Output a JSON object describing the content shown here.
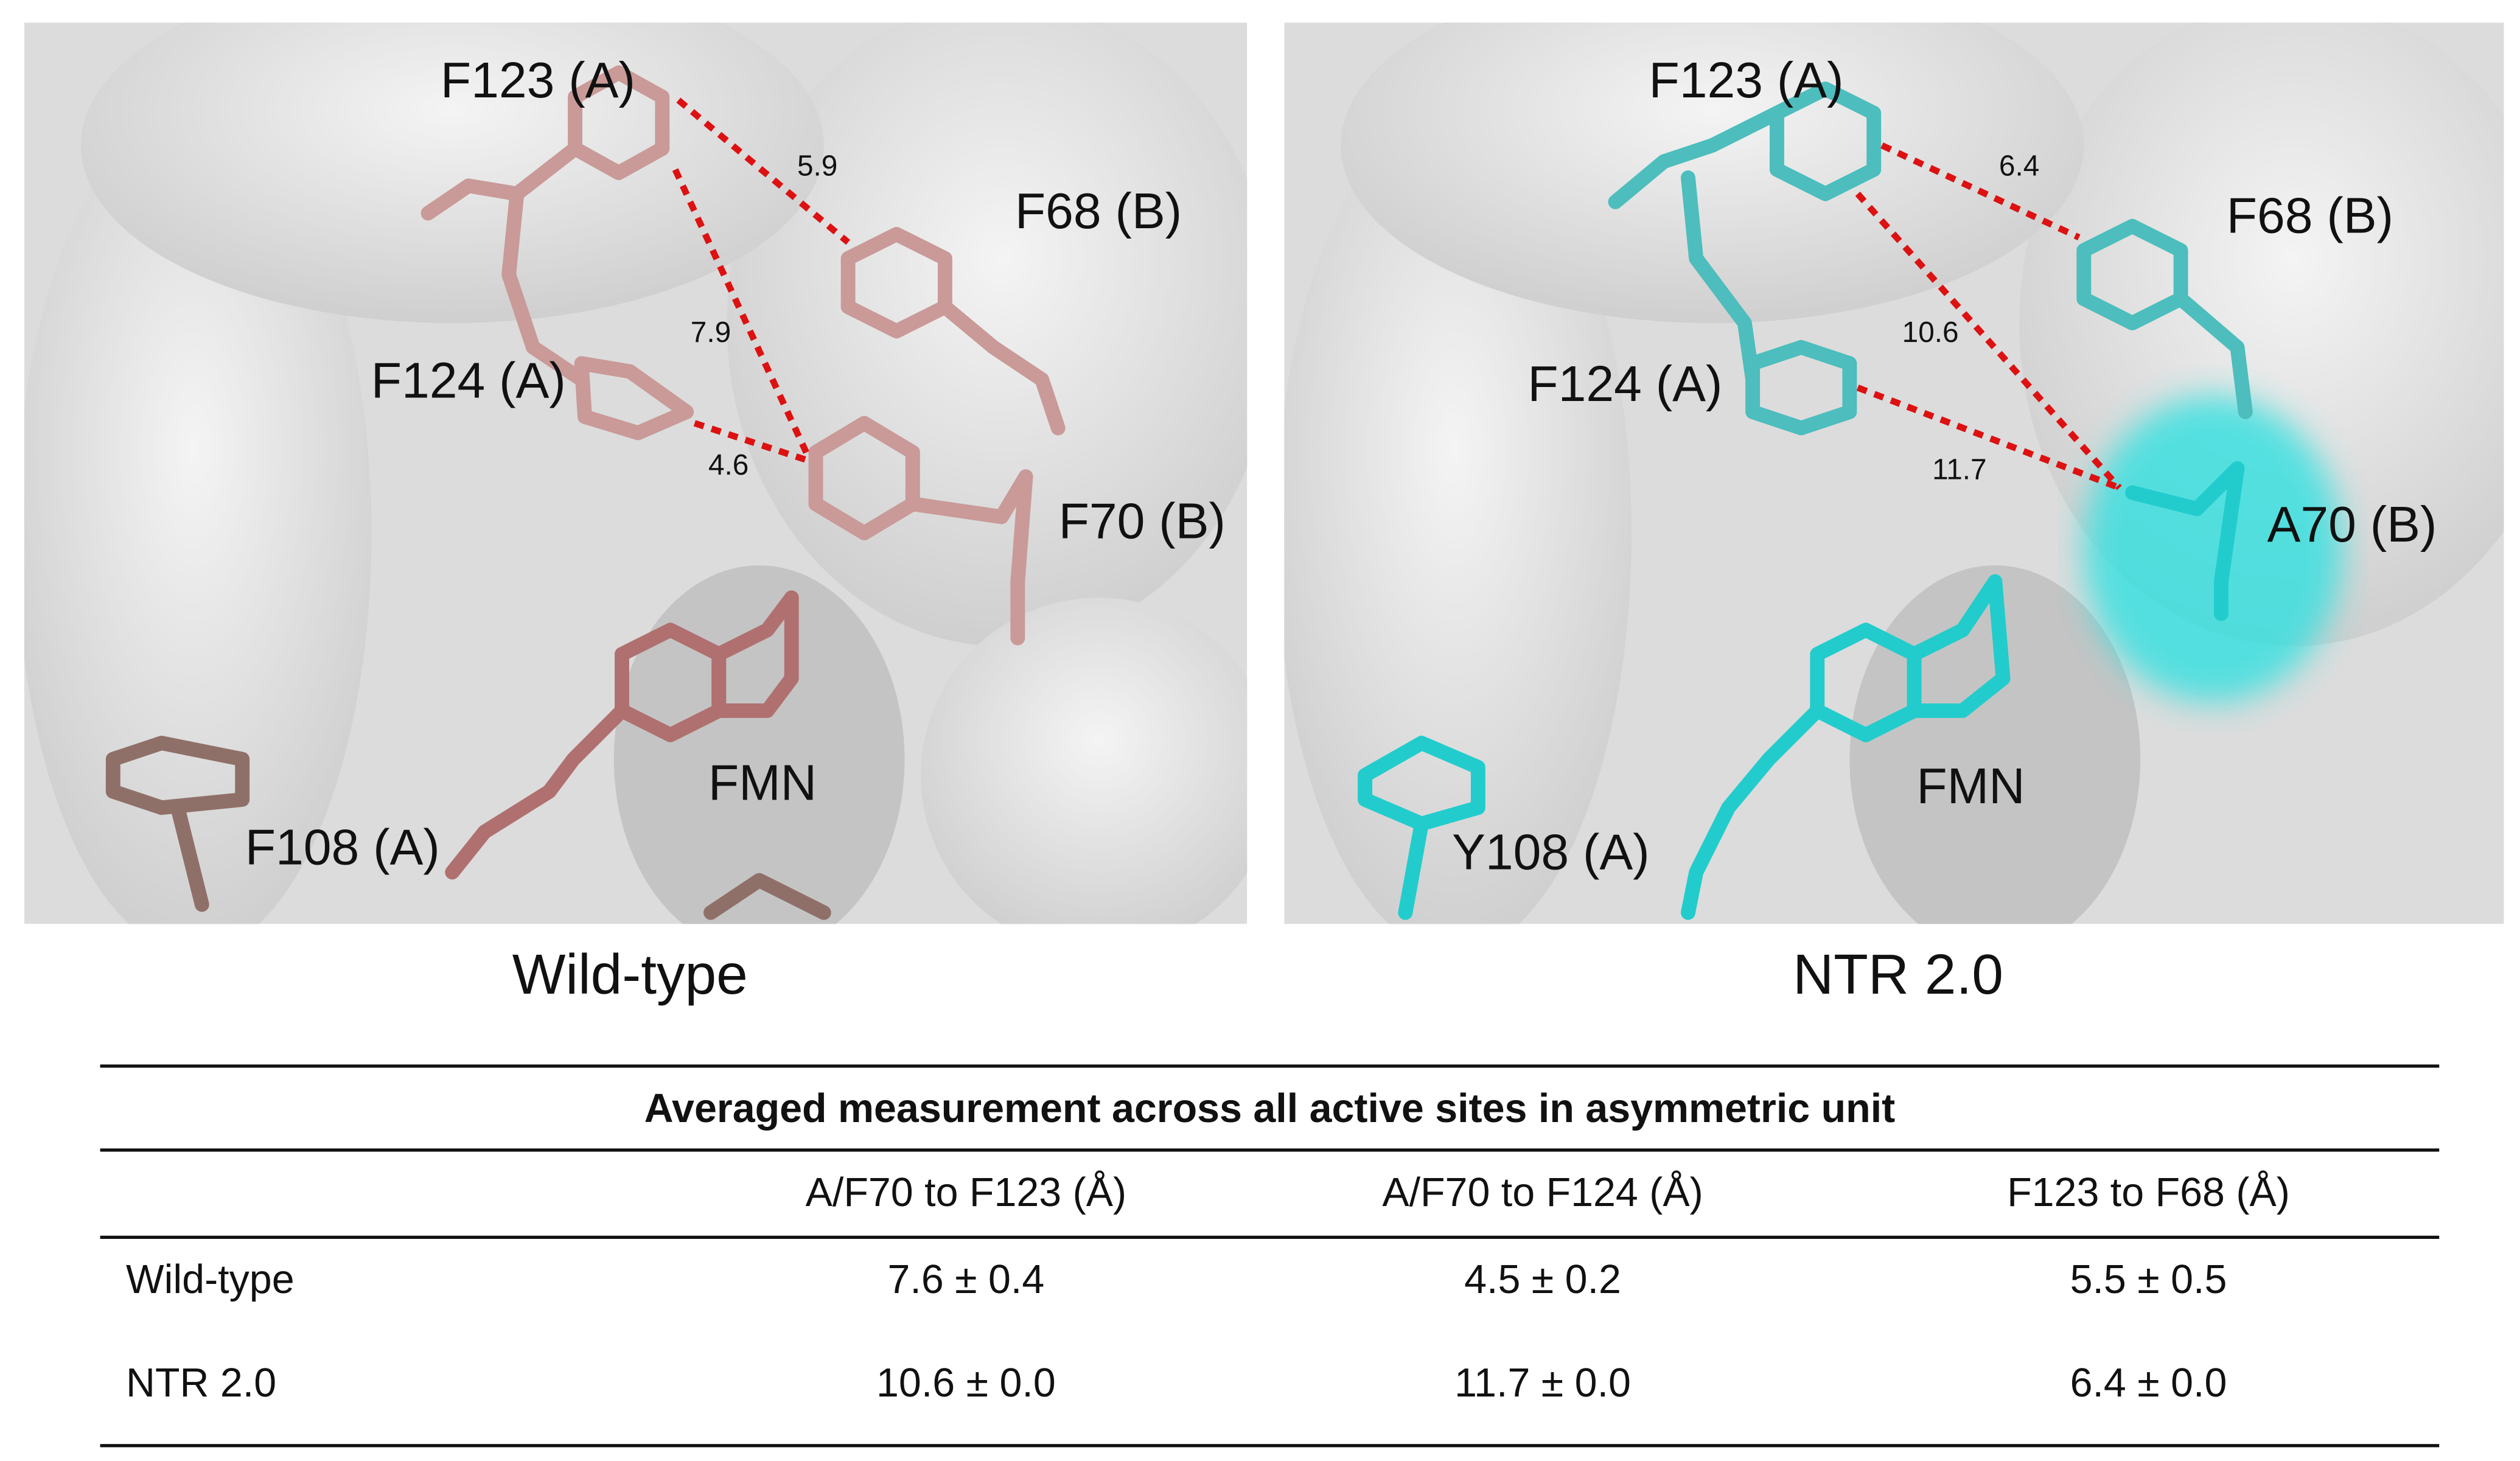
{
  "panels": [
    {
      "caption": "Wild-type",
      "labels": [
        "F123 (A)",
        "F68 (B)",
        "F124 (A)",
        "F70 (B)",
        "FMN",
        "F108 (A)"
      ],
      "distances": [
        "5.9",
        "7.9",
        "4.6"
      ]
    },
    {
      "caption": "NTR 2.0",
      "labels": [
        "F123 (A)",
        "F68 (B)",
        "F124 (A)",
        "A70 (B)",
        "FMN",
        "Y108 (A)"
      ],
      "distances": [
        "6.4",
        "10.6",
        "11.7"
      ]
    }
  ],
  "table": {
    "title": "Averaged measurement across all active sites in asymmetric unit",
    "columns": [
      "A/F70 to F123 (Å)",
      "A/F70 to F124 (Å)",
      "F123 to F68 (Å)"
    ],
    "rows": [
      {
        "label": "Wild-type",
        "cells": [
          "7.6 ± 0.4",
          "4.5 ± 0.2",
          "5.5 ± 0.5"
        ]
      },
      {
        "label": "NTR 2.0",
        "cells": [
          "10.6 ± 0.0",
          "11.7 ± 0.0",
          "6.4 ± 0.0"
        ]
      }
    ]
  }
}
